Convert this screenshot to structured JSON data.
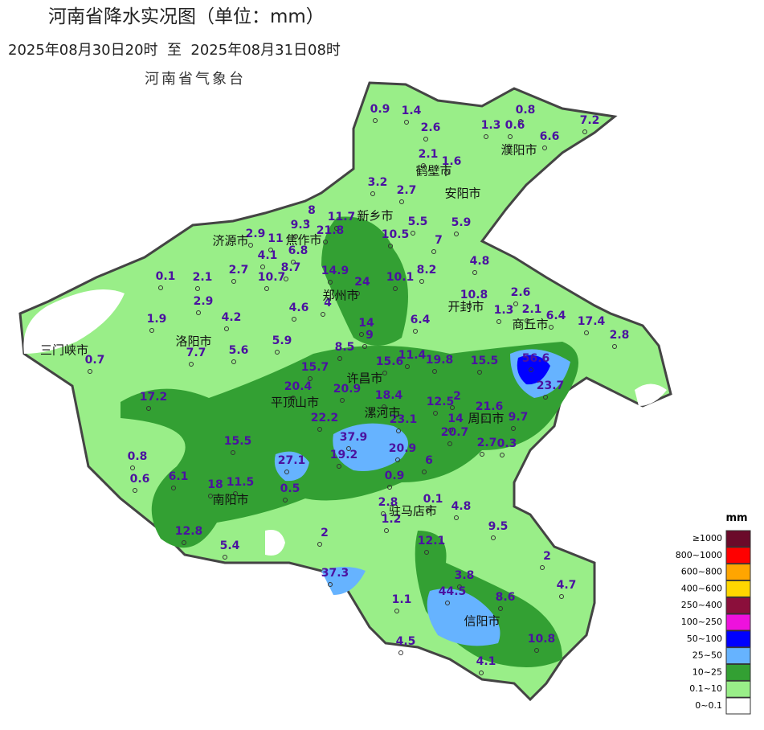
{
  "header": {
    "title": "河南省降水实况图（单位：mm）",
    "subtitle": "2025年08月30日20时  至  2025年08月31日08时",
    "agency": "河南省气象台"
  },
  "stations": [
    0.9,
    1.4,
    2.6,
    0.8,
    1.3,
    0.6,
    7.2,
    6.6,
    2.1,
    1.6,
    3.2,
    2.7,
    5.9,
    5.5,
    7,
    11.7,
    8,
    9.3,
    21.8,
    2.9,
    11,
    6.8,
    4.1,
    8.7,
    10.5,
    4.8,
    8.2,
    14.9,
    24,
    10.1,
    0.1,
    2.1,
    2.7,
    10.7,
    2.9,
    4.2,
    4.6,
    4,
    10.8,
    2.6,
    1.3,
    2.1,
    6.4,
    6.4,
    17.4,
    2.8,
    14,
    9,
    1.9,
    5.6,
    5.9,
    8.5,
    7.7,
    0.7,
    15.7,
    15.6,
    11.4,
    19.8,
    15.5,
    56.6,
    23.7,
    20.4,
    20.9,
    17.2,
    18.4,
    12.5,
    2,
    21.6,
    22.2,
    14,
    9.7,
    23.1,
    37.9,
    20.7,
    15.5,
    2.7,
    0.3,
    20.9,
    19.2,
    27.1,
    6,
    0.8,
    0.6,
    6.1,
    18,
    11.5,
    0.5,
    0.9,
    0.1,
    2.8,
    4.8,
    1.2,
    9.5,
    12.8,
    2,
    5.4,
    12.1,
    2,
    3.8,
    37.3,
    4.7,
    44.5,
    8.6,
    1.1,
    10.8,
    4.5,
    4.1
  ],
  "cities": [
    "濮阳市",
    "鹤壁市",
    "安阳市",
    "新乡市",
    "焦作市",
    "济源市",
    "郑州市",
    "开封市",
    "商丘市",
    "洛阳市",
    "三门峡市",
    "许昌市",
    "平顶山市",
    "漯河市",
    "周口市",
    "南阳市",
    "驻马店市",
    "信阳市"
  ],
  "legend": {
    "title": "mm",
    "items": [
      {
        "label": "≥1000",
        "color": "#6b0a2a"
      },
      {
        "label": "800~1000",
        "color": "#ff0000"
      },
      {
        "label": "600~800",
        "color": "#ffa500"
      },
      {
        "label": "400~600",
        "color": "#ffd700"
      },
      {
        "label": "250~400",
        "color": "#8b0f3b"
      },
      {
        "label": "100~250",
        "color": "#ee11dd"
      },
      {
        "label": "50~100",
        "color": "#0000ff"
      },
      {
        "label": "25~50",
        "color": "#66b3ff"
      },
      {
        "label": "10~25",
        "color": "#33a033"
      },
      {
        "label": "0.1~10",
        "color": "#99ee88"
      },
      {
        "label": "0~0.1",
        "color": "#ffffff"
      }
    ]
  }
}
